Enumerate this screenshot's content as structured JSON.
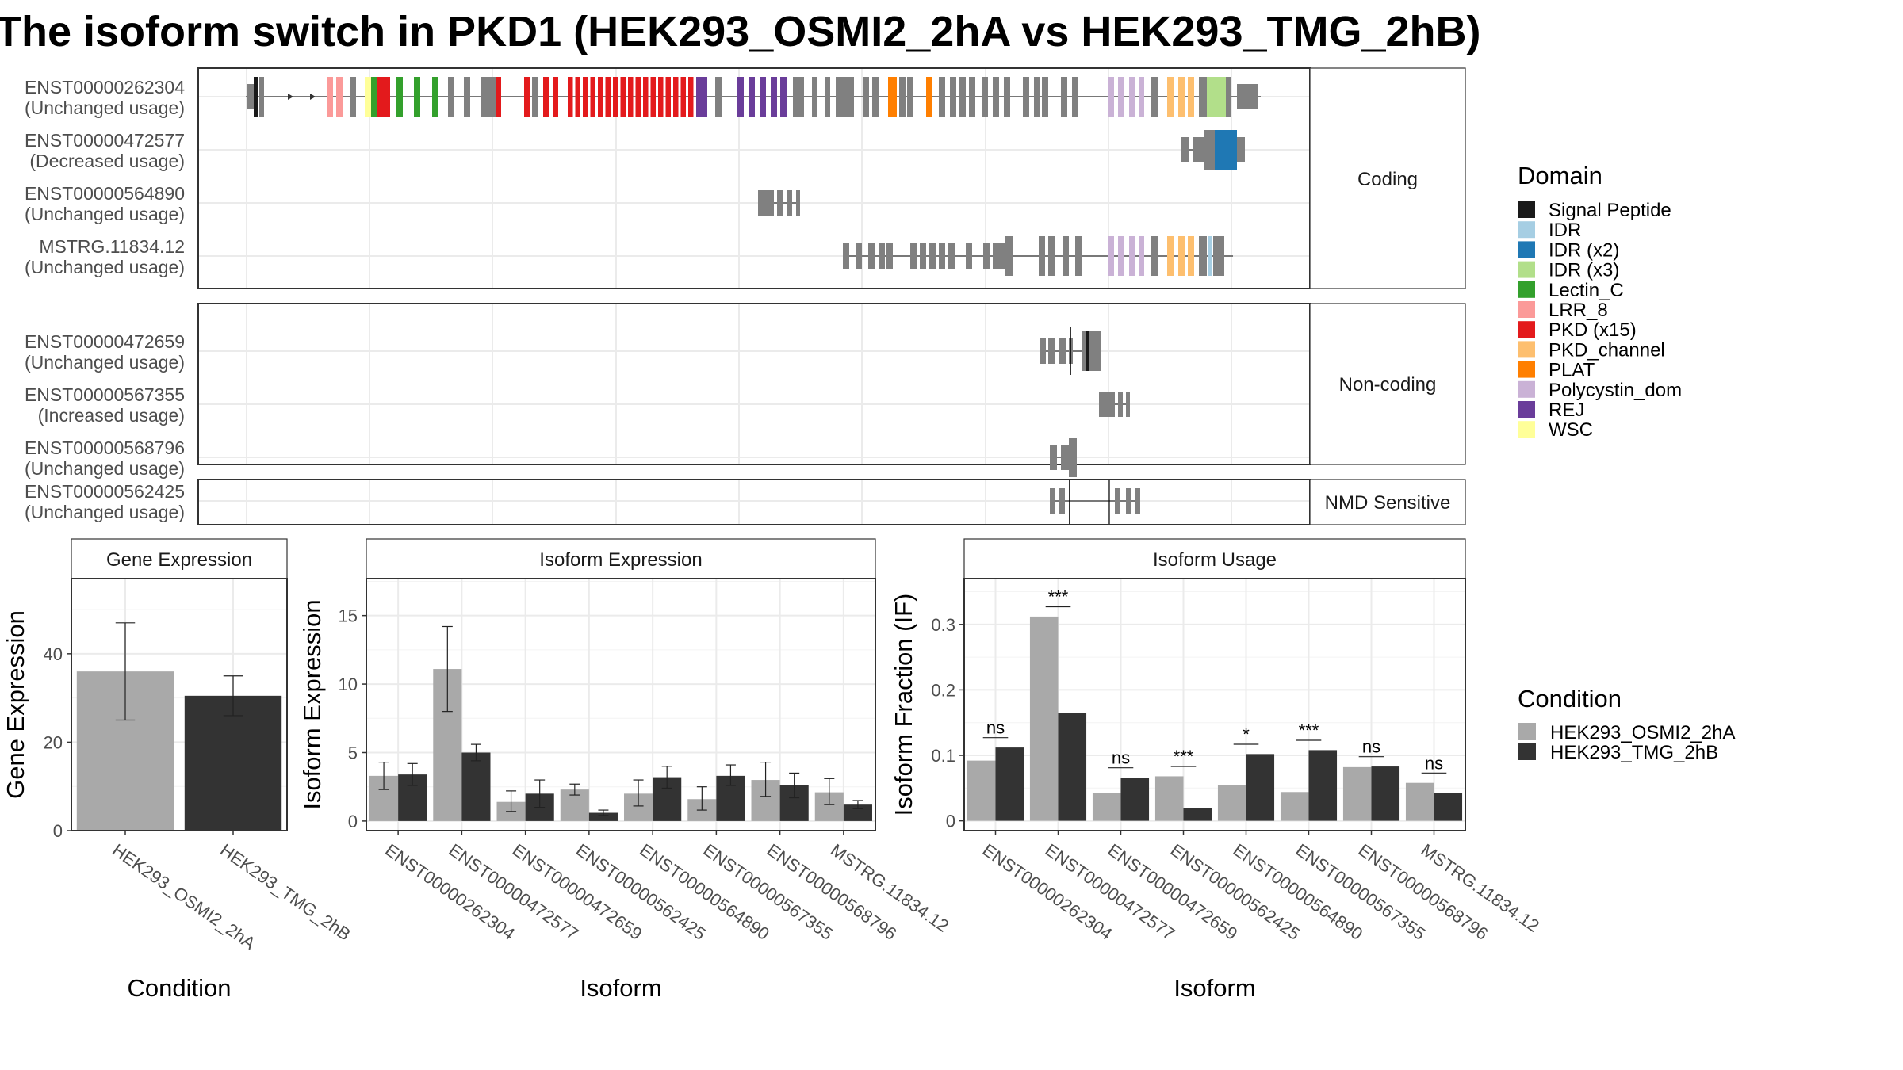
{
  "title": "The isoform switch in PKD1 (HEK293_OSMI2_2hA vs HEK293_TMG_2hB)",
  "structure": {
    "groups": [
      {
        "label": "Coding",
        "transcripts": [
          {
            "id": "ENST00000262304",
            "status": "(Unchanged usage)"
          },
          {
            "id": "ENST00000472577",
            "status": "(Decreased usage)"
          },
          {
            "id": "ENST00000564890",
            "status": "(Unchanged usage)"
          },
          {
            "id": "MSTRG.11834.12",
            "status": "(Unchanged usage)"
          }
        ]
      },
      {
        "label": "Non-coding",
        "transcripts": [
          {
            "id": "ENST00000472659",
            "status": "(Unchanged usage)"
          },
          {
            "id": "ENST00000567355",
            "status": "(Increased usage)"
          },
          {
            "id": "ENST00000568796",
            "status": "(Unchanged usage)"
          }
        ]
      },
      {
        "label": "NMD Sensitive",
        "transcripts": [
          {
            "id": "ENST00000562425",
            "status": "(Unchanged usage)"
          }
        ]
      }
    ]
  },
  "domain_legend": {
    "title": "Domain",
    "items": [
      {
        "name": "Signal Peptide",
        "color": "#1a1a1a"
      },
      {
        "name": "IDR",
        "color": "#a6cee3"
      },
      {
        "name": "IDR (x2)",
        "color": "#1f78b4"
      },
      {
        "name": "IDR (x3)",
        "color": "#b2df8a"
      },
      {
        "name": "Lectin_C",
        "color": "#33a02c"
      },
      {
        "name": "LRR_8",
        "color": "#fb9a99"
      },
      {
        "name": "PKD (x15)",
        "color": "#e31a1c"
      },
      {
        "name": "PKD_channel",
        "color": "#fdbf6f"
      },
      {
        "name": "PLAT",
        "color": "#ff7f00"
      },
      {
        "name": "Polycystin_dom",
        "color": "#cab2d6"
      },
      {
        "name": "REJ",
        "color": "#6a3d9a"
      },
      {
        "name": "WSC",
        "color": "#ffff99"
      }
    ]
  },
  "condition_legend": {
    "title": "Condition",
    "items": [
      {
        "name": "HEK293_OSMI2_2hA",
        "color": "#a9a9a9"
      },
      {
        "name": "HEK293_TMG_2hB",
        "color": "#333333"
      }
    ]
  },
  "chart_data": [
    {
      "type": "bar",
      "title": "Gene Expression",
      "xlabel": "Condition",
      "ylabel": "Gene Expression",
      "ylim": [
        0,
        57
      ],
      "yticks": [
        0,
        20,
        40
      ],
      "categories": [
        "HEK293_OSMI2_2hA",
        "HEK293_TMG_2hB"
      ],
      "values": [
        36,
        30.5
      ],
      "errors": [
        [
          25,
          47
        ],
        [
          26,
          35
        ]
      ],
      "colors": [
        "#a9a9a9",
        "#333333"
      ]
    },
    {
      "type": "bar",
      "title": "Isoform Expression",
      "xlabel": "Isoform",
      "ylabel": "Isoform Expression",
      "ylim": [
        -0.7,
        17.7
      ],
      "yticks": [
        0,
        5,
        10,
        15
      ],
      "categories": [
        "ENST00000262304",
        "ENST00000472577",
        "ENST00000472659",
        "ENST00000562425",
        "ENST00000564890",
        "ENST00000567355",
        "ENST00000568796",
        "MSTRG.11834.12"
      ],
      "series": [
        {
          "name": "HEK293_OSMI2_2hA",
          "values": [
            3.3,
            11.1,
            1.4,
            2.3,
            2.0,
            1.6,
            3.0,
            2.1
          ],
          "errors": [
            [
              2.3,
              4.3
            ],
            [
              8.0,
              14.2
            ],
            [
              0.7,
              2.2
            ],
            [
              1.9,
              2.7
            ],
            [
              1.1,
              3.0
            ],
            [
              0.8,
              2.5
            ],
            [
              1.8,
              4.3
            ],
            [
              1.2,
              3.1
            ]
          ]
        },
        {
          "name": "HEK293_TMG_2hB",
          "values": [
            3.4,
            5.0,
            2.0,
            0.6,
            3.2,
            3.3,
            2.6,
            1.2
          ],
          "errors": [
            [
              2.6,
              4.2
            ],
            [
              4.4,
              5.6
            ],
            [
              1.0,
              3.0
            ],
            [
              0.4,
              0.8
            ],
            [
              2.4,
              4.0
            ],
            [
              2.6,
              4.1
            ],
            [
              1.7,
              3.5
            ],
            [
              0.9,
              1.5
            ]
          ]
        }
      ]
    },
    {
      "type": "bar",
      "title": "Isoform Usage",
      "xlabel": "Isoform",
      "ylabel": "Isoform Fraction (IF)",
      "ylim": [
        -0.015,
        0.37
      ],
      "yticks": [
        0.0,
        0.1,
        0.2,
        0.3
      ],
      "categories": [
        "ENST00000262304",
        "ENST00000472577",
        "ENST00000472659",
        "ENST00000562425",
        "ENST00000564890",
        "ENST00000567355",
        "ENST00000568796",
        "MSTRG.11834.12"
      ],
      "series": [
        {
          "name": "HEK293_OSMI2_2hA",
          "values": [
            0.092,
            0.312,
            0.042,
            0.068,
            0.055,
            0.044,
            0.082,
            0.058
          ]
        },
        {
          "name": "HEK293_TMG_2hB",
          "values": [
            0.112,
            0.165,
            0.066,
            0.02,
            0.102,
            0.108,
            0.083,
            0.042
          ]
        }
      ],
      "significance": [
        {
          "label": "ns",
          "y": 0.127
        },
        {
          "label": "***",
          "y": 0.327
        },
        {
          "label": "ns",
          "y": 0.081
        },
        {
          "label": "***",
          "y": 0.083
        },
        {
          "label": "*",
          "y": 0.117
        },
        {
          "label": "***",
          "y": 0.123
        },
        {
          "label": "ns",
          "y": 0.098
        },
        {
          "label": "ns",
          "y": 0.073
        }
      ]
    }
  ]
}
